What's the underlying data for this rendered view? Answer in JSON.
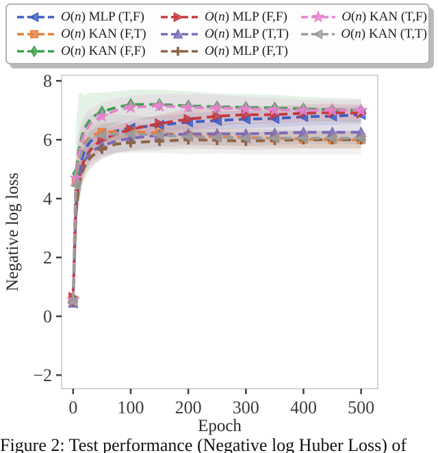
{
  "figure": {
    "caption": "Figure 2: Test performance (Negative log Huber Loss) of"
  },
  "chart_data": {
    "type": "line",
    "title": "",
    "xlabel": "Epoch",
    "ylabel": "Negative log loss",
    "xticks": [
      0,
      100,
      200,
      300,
      400,
      500
    ],
    "yticks": [
      8,
      6,
      4,
      2,
      0,
      -2
    ],
    "xlim": [
      -20,
      529
    ],
    "ylim": [
      -2.46,
      8.19
    ],
    "grid": false,
    "legend_position": "top",
    "legend_columns": 3,
    "line_style": "dashed",
    "marker_every": 50,
    "x": [
      0,
      5,
      10,
      15,
      20,
      30,
      40,
      50,
      75,
      100,
      150,
      200,
      250,
      300,
      350,
      400,
      450,
      500
    ],
    "series": [
      {
        "name": "O(n) MLP (T,F)",
        "color": "#3D5EC6",
        "marker": "triangle-left",
        "early_marker": false,
        "values": [
          0.45,
          4.0,
          4.9,
          5.35,
          5.65,
          5.95,
          6.1,
          6.2,
          6.3,
          6.4,
          6.5,
          6.6,
          6.65,
          6.7,
          6.72,
          6.78,
          6.8,
          6.85
        ],
        "spread": [
          0.1,
          0.5,
          0.5,
          0.45,
          0.4,
          0.35,
          0.3,
          0.3,
          0.3,
          0.3,
          0.3,
          0.3,
          0.3,
          0.3,
          0.3,
          0.3,
          0.3,
          0.3
        ]
      },
      {
        "name": "O(n) KAN (F,T)",
        "color": "#E5813D",
        "marker": "square",
        "early_marker": true,
        "values": [
          0.5,
          4.55,
          5.3,
          5.7,
          5.9,
          6.1,
          6.2,
          6.25,
          6.28,
          6.28,
          6.22,
          6.15,
          6.1,
          6.08,
          6.05,
          6.02,
          6.0,
          6.0
        ],
        "spread": [
          0.1,
          0.5,
          0.55,
          0.5,
          0.45,
          0.4,
          0.35,
          0.35,
          0.3,
          0.3,
          0.3,
          0.3,
          0.3,
          0.3,
          0.3,
          0.3,
          0.3,
          0.3
        ]
      },
      {
        "name": "O(n) KAN (F,F)",
        "color": "#3DA14F",
        "marker": "diamond",
        "early_marker": true,
        "values": [
          0.6,
          4.85,
          5.65,
          6.1,
          6.4,
          6.7,
          6.85,
          6.95,
          7.1,
          7.2,
          7.2,
          7.15,
          7.12,
          7.1,
          7.08,
          7.05,
          7.02,
          7.0
        ],
        "spread": [
          0.15,
          1.6,
          1.9,
          1.5,
          1.1,
          0.9,
          0.75,
          0.65,
          0.55,
          0.5,
          0.5,
          0.5,
          0.45,
          0.45,
          0.45,
          0.4,
          0.4,
          0.4
        ]
      },
      {
        "name": "O(n) MLP (F,F)",
        "color": "#C33A3E",
        "marker": "triangle-right",
        "early_marker": false,
        "values": [
          0.65,
          3.6,
          4.6,
          5.05,
          5.35,
          5.65,
          5.85,
          6.0,
          6.2,
          6.35,
          6.55,
          6.7,
          6.8,
          6.85,
          6.85,
          6.9,
          6.92,
          6.9
        ],
        "spread": [
          0.1,
          0.5,
          0.55,
          0.5,
          0.45,
          0.4,
          0.35,
          0.35,
          0.3,
          0.3,
          0.3,
          0.35,
          0.35,
          0.3,
          0.3,
          0.3,
          0.3,
          0.3
        ]
      },
      {
        "name": "O(n) MLP (T,T)",
        "color": "#7A6AB8",
        "marker": "triangle-up",
        "early_marker": false,
        "values": [
          0.45,
          3.75,
          4.6,
          5.0,
          5.3,
          5.55,
          5.7,
          5.8,
          5.95,
          6.05,
          6.15,
          6.2,
          6.2,
          6.2,
          6.22,
          6.25,
          6.25,
          6.25
        ],
        "spread": [
          0.1,
          0.55,
          0.6,
          0.55,
          0.5,
          0.45,
          0.45,
          0.4,
          0.4,
          0.4,
          0.4,
          0.4,
          0.4,
          0.4,
          0.4,
          0.4,
          0.4,
          0.4
        ]
      },
      {
        "name": "O(n) MLP (F,T)",
        "color": "#8D6444",
        "marker": "plus",
        "early_marker": false,
        "values": [
          0.5,
          3.5,
          4.4,
          4.85,
          5.1,
          5.4,
          5.55,
          5.68,
          5.85,
          5.9,
          5.95,
          6.0,
          5.98,
          5.95,
          5.98,
          6.0,
          6.0,
          6.0
        ],
        "spread": [
          0.1,
          0.5,
          0.55,
          0.5,
          0.45,
          0.4,
          0.35,
          0.35,
          0.3,
          0.3,
          0.3,
          0.3,
          0.3,
          0.3,
          0.3,
          0.3,
          0.3,
          0.3
        ]
      },
      {
        "name": "O(n) KAN (T,F)",
        "color": "#E583CF",
        "marker": "star",
        "early_marker": true,
        "values": [
          0.55,
          4.7,
          5.5,
          5.95,
          6.25,
          6.55,
          6.7,
          6.8,
          7.0,
          7.1,
          7.15,
          7.1,
          7.08,
          7.05,
          7.02,
          7.0,
          7.0,
          7.0
        ],
        "spread": [
          0.1,
          0.7,
          0.8,
          0.7,
          0.6,
          0.5,
          0.45,
          0.45,
          0.4,
          0.4,
          0.4,
          0.45,
          0.45,
          0.4,
          0.4,
          0.35,
          0.35,
          0.35
        ]
      },
      {
        "name": "O(n) KAN (T,T)",
        "color": "#9C9C9C",
        "marker": "triangle-left",
        "early_marker": true,
        "values": [
          0.5,
          4.45,
          5.2,
          5.6,
          5.85,
          6.05,
          6.1,
          6.15,
          6.2,
          6.2,
          6.15,
          6.1,
          6.08,
          6.05,
          6.05,
          6.05,
          6.05,
          6.05
        ],
        "spread": [
          0.15,
          0.9,
          1.0,
          0.9,
          0.85,
          0.8,
          0.75,
          0.7,
          0.65,
          0.65,
          0.6,
          0.6,
          0.55,
          0.55,
          0.55,
          0.55,
          0.55,
          0.55
        ]
      }
    ]
  },
  "style": {
    "spine_color": "#c9c9c9",
    "tick_color": "#3f3f3f",
    "band_opacity": 0.14
  }
}
